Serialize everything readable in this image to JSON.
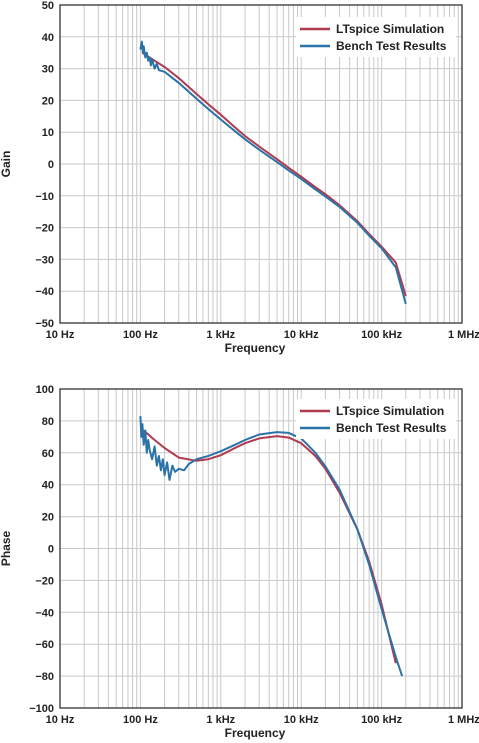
{
  "colors": {
    "sim": "#b03a4e",
    "bench": "#2a73a8",
    "grid": "#c9c9c9",
    "axis": "#222222"
  },
  "chart_data": [
    {
      "type": "line",
      "xscale": "log",
      "xlim": [
        10,
        1000000
      ],
      "ylim": [
        -50,
        50
      ],
      "xticks": [
        10,
        100,
        1000,
        10000,
        100000,
        1000000
      ],
      "xtick_labels": [
        "10 Hz",
        "100 Hz",
        "1 kHz",
        "10 kHz",
        "100 kHz",
        "1 MHz"
      ],
      "yticks": [
        -50,
        -40,
        -30,
        -20,
        -10,
        0,
        10,
        20,
        30,
        40,
        50
      ],
      "ytick_labels": [
        "−50",
        "−40",
        "−30",
        "−20",
        "−10",
        "0",
        "10",
        "20",
        "30",
        "40",
        "50"
      ],
      "xlabel": "Frequency",
      "ylabel": "Gain",
      "grid": true,
      "legend_position": "top-right",
      "series": [
        {
          "name": "LTspice Simulation",
          "color": "#b03a4e",
          "x": [
            105,
            150,
            200,
            300,
            500,
            700,
            1000,
            1500,
            2000,
            3000,
            5000,
            7000,
            10000,
            15000,
            20000,
            30000,
            50000,
            70000,
            100000,
            150000,
            200000
          ],
          "y": [
            35,
            32.5,
            30.5,
            27,
            22,
            18.8,
            15.5,
            11.5,
            8.8,
            5.5,
            1.5,
            -1.2,
            -4,
            -7.3,
            -9.5,
            -13,
            -18,
            -22,
            -26,
            -31,
            -41.5
          ]
        },
        {
          "name": "Bench Test Results",
          "color": "#2a73a8",
          "x": [
            100,
            104,
            107,
            110,
            115,
            120,
            125,
            130,
            135,
            140,
            150,
            160,
            170,
            200,
            300,
            500,
            700,
            1000,
            1500,
            2000,
            3000,
            5000,
            7000,
            10000,
            15000,
            20000,
            30000,
            50000,
            70000,
            100000,
            150000,
            200000
          ],
          "y": [
            36,
            38.5,
            35,
            37,
            33.5,
            35,
            32.5,
            33.5,
            31,
            33,
            30,
            31.5,
            29.5,
            29,
            25.5,
            20.5,
            17.3,
            14,
            10.3,
            7.8,
            4.5,
            0.6,
            -2,
            -4.7,
            -8,
            -10.2,
            -13.5,
            -18.5,
            -22.5,
            -26.5,
            -32.5,
            -44
          ]
        }
      ]
    },
    {
      "type": "line",
      "xscale": "log",
      "xlim": [
        10,
        1000000
      ],
      "ylim": [
        -100,
        100
      ],
      "xticks": [
        10,
        100,
        1000,
        10000,
        100000,
        1000000
      ],
      "xtick_labels": [
        "10 Hz",
        "100 Hz",
        "1 kHz",
        "10 kHz",
        "100 kHz",
        "1 MHz"
      ],
      "yticks": [
        -100,
        -80,
        -60,
        -40,
        -20,
        0,
        20,
        40,
        60,
        80,
        100
      ],
      "ytick_labels": [
        "−100",
        "−80",
        "−60",
        "−40",
        "−20",
        "0",
        "20",
        "40",
        "60",
        "80",
        "100"
      ],
      "xlabel": "Frequency",
      "ylabel": "Phase",
      "grid": true,
      "legend_position": "top-right",
      "series": [
        {
          "name": "LTspice Simulation",
          "color": "#b03a4e",
          "x": [
            110,
            150,
            200,
            300,
            500,
            700,
            1000,
            1500,
            2000,
            3000,
            5000,
            7000,
            10000,
            15000,
            20000,
            30000,
            50000,
            70000,
            100000,
            150000
          ],
          "y": [
            74,
            68,
            63,
            57,
            55,
            56,
            58.5,
            63,
            66,
            69,
            70.5,
            69.5,
            66,
            58,
            50,
            35,
            12,
            -8,
            -35,
            -72
          ]
        },
        {
          "name": "Bench Test Results",
          "color": "#2a73a8",
          "x": [
            100,
            103,
            106,
            110,
            115,
            120,
            125,
            130,
            140,
            150,
            160,
            170,
            180,
            190,
            200,
            215,
            230,
            250,
            270,
            300,
            350,
            400,
            500,
            700,
            1000,
            1500,
            2000,
            3000,
            5000,
            7000,
            10000,
            15000,
            20000,
            30000,
            50000,
            70000,
            100000,
            150000,
            180000
          ],
          "y": [
            83,
            70,
            78,
            65,
            74,
            60,
            68,
            62,
            56,
            64,
            52,
            58,
            49,
            56,
            46,
            54,
            43,
            52,
            48,
            50,
            49,
            53,
            56,
            58,
            61,
            65,
            68,
            71.5,
            73,
            72.5,
            69,
            60,
            51.5,
            37,
            12,
            -10,
            -38,
            -68,
            -80
          ]
        }
      ]
    }
  ]
}
